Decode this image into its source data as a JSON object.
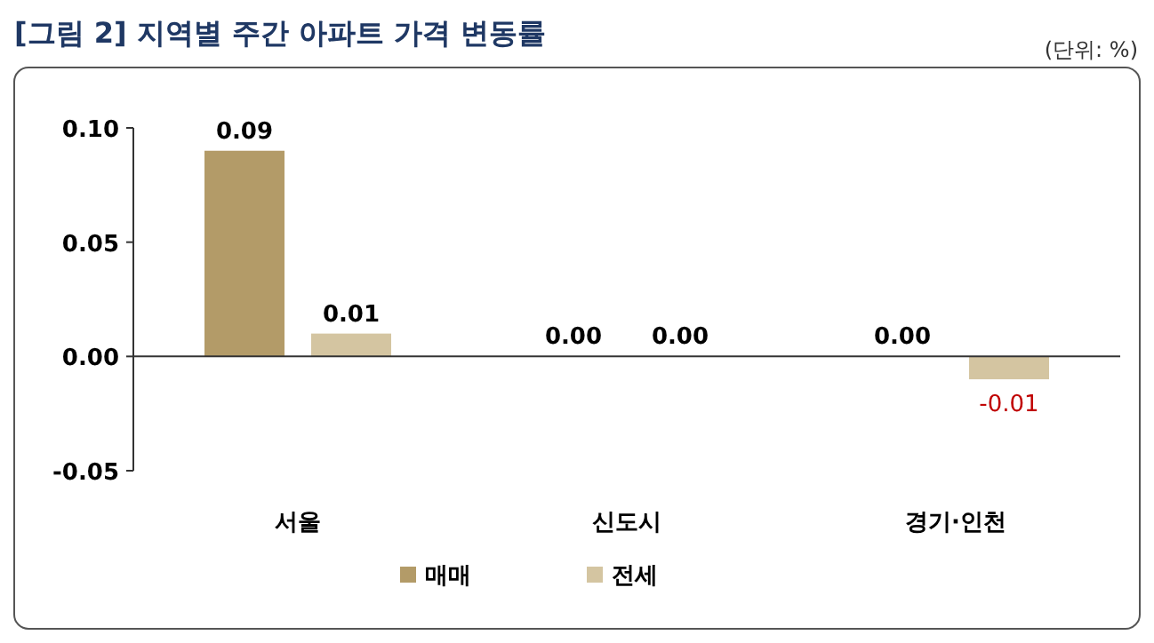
{
  "chart_data": {
    "type": "bar",
    "title": "[그림 2] 지역별 주간 아파트 가격 변동률",
    "annotations": [
      "(단위: %)"
    ],
    "categories": [
      "서울",
      "신도시",
      "경기·인천"
    ],
    "series": [
      {
        "name": "매매",
        "color": "#b39b68",
        "values": [
          0.09,
          0.0,
          0.0
        ],
        "value_labels": [
          "0.09",
          "0.00",
          "0.00"
        ]
      },
      {
        "name": "전세",
        "color": "#d4c5a1",
        "values": [
          0.01,
          0.0,
          -0.01
        ],
        "value_labels": [
          "0.01",
          "0.00",
          "-0.01"
        ]
      }
    ],
    "ylim": [
      -0.05,
      0.1
    ],
    "yticks": [
      {
        "value": -0.05,
        "label": "-0.05"
      },
      {
        "value": 0,
        "label": "0.00"
      },
      {
        "value": 0.05,
        "label": "0.05"
      },
      {
        "value": 0.1,
        "label": "0.10"
      }
    ],
    "legend": "bottom"
  }
}
